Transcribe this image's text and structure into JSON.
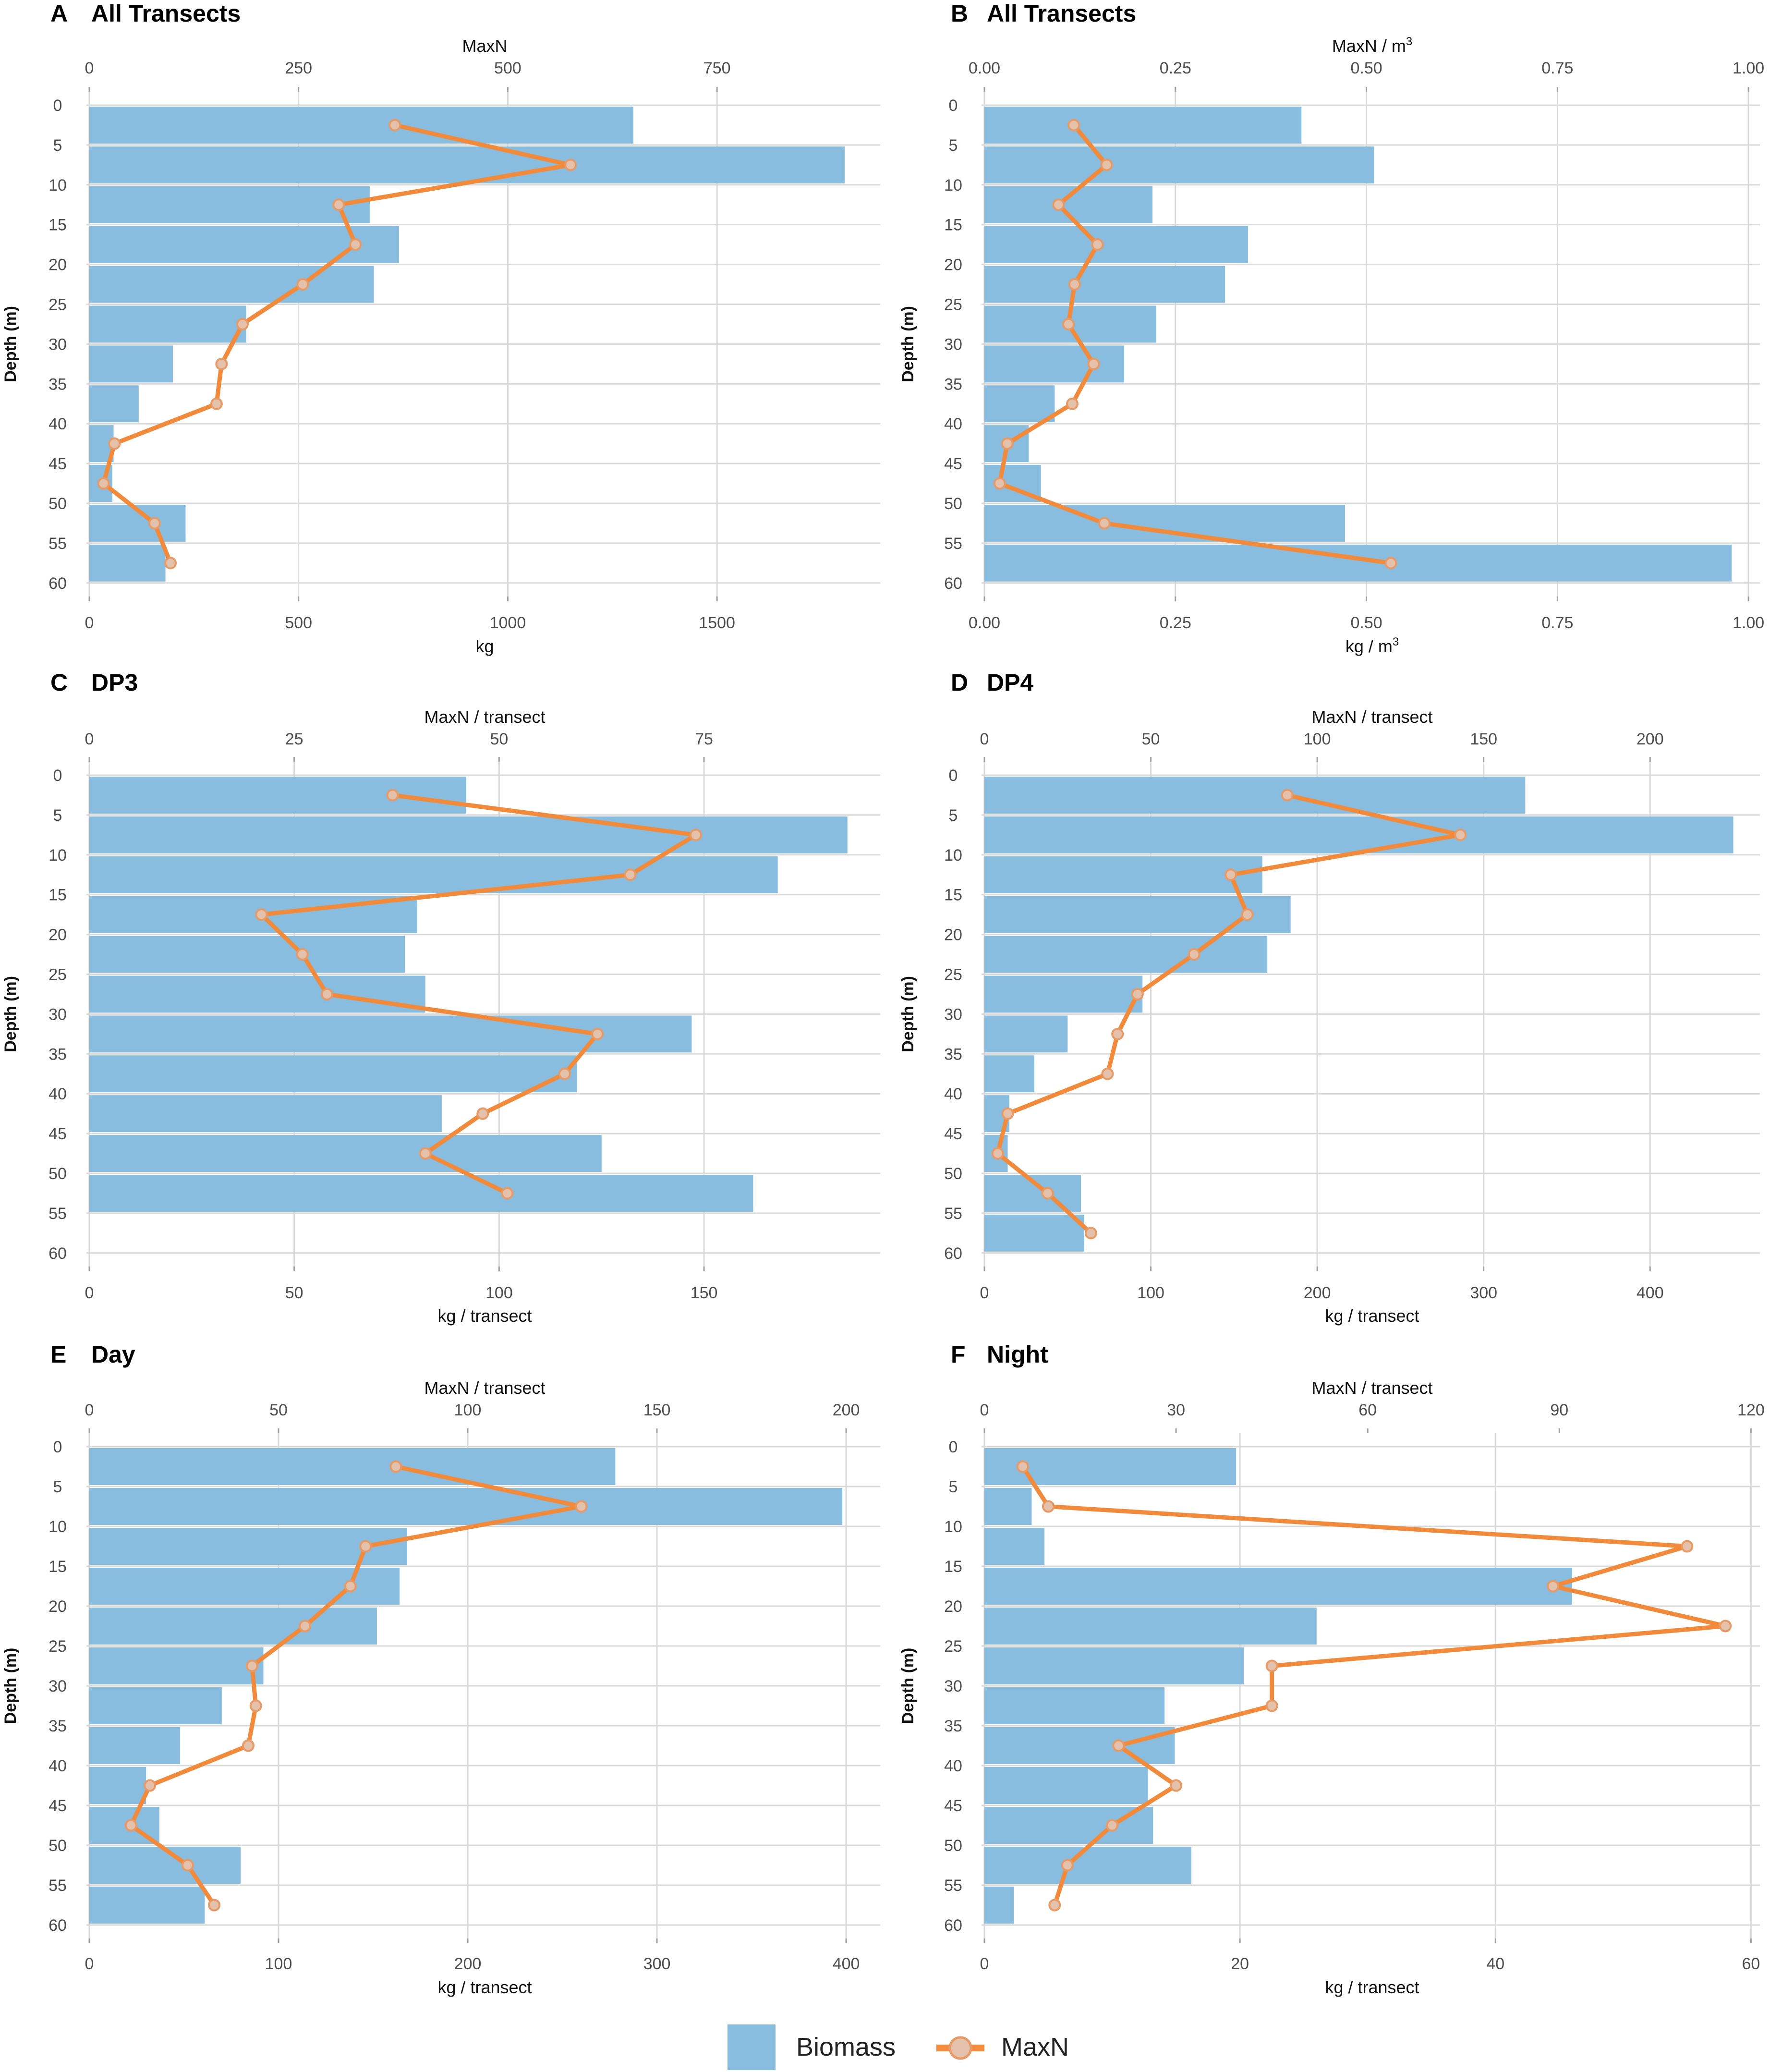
{
  "colors": {
    "biomass": "#88bde0",
    "maxn": "#f28a3c",
    "marker_fill": "#e3c1aa",
    "marker_stroke": "#e89a66"
  },
  "legend": {
    "biomass_label": "Biomass",
    "maxn_label": "MaxN"
  },
  "chart_data": [
    {
      "type": "bar",
      "letter": "A",
      "title": "All Transects",
      "xlabel_bottom": "kg",
      "xlabel_top": "MaxN",
      "xlabel_top_sup": "",
      "xlabel_bottom_sup": "",
      "ylabel": "Depth (m)",
      "bottom_range": [
        0,
        1890
      ],
      "bottom_ticks": [
        0,
        500,
        1000,
        1500
      ],
      "bottom_tick_labels": [
        "0",
        "500",
        "1000",
        "1500"
      ],
      "top_range": [
        0,
        945
      ],
      "top_ticks": [
        0,
        250,
        500,
        750
      ],
      "top_tick_labels": [
        "0",
        "250",
        "500",
        "750"
      ],
      "depth_ticks": [
        0,
        5,
        10,
        15,
        20,
        25,
        30,
        35,
        40,
        45,
        50,
        55,
        60
      ],
      "depth_tick_labels": [
        "0",
        "5",
        "10",
        "15",
        "20",
        "25",
        "30",
        "35",
        "40",
        "45",
        "50",
        "55",
        "60"
      ],
      "biomass": [
        1300,
        1805,
        670,
        740,
        680,
        375,
        200,
        118,
        58,
        55,
        230,
        182
      ],
      "maxn": [
        365,
        575,
        298,
        318,
        255,
        183,
        158,
        152,
        30,
        17,
        78,
        97
      ]
    },
    {
      "type": "bar",
      "letter": "B",
      "title": "All Transects",
      "xlabel_bottom": "kg / m",
      "xlabel_top": "MaxN / m",
      "xlabel_top_sup": "3",
      "xlabel_bottom_sup": "3",
      "ylabel": "Depth (m)",
      "bottom_range": [
        0,
        1.015
      ],
      "bottom_ticks": [
        0,
        0.25,
        0.5,
        0.75,
        1.0
      ],
      "bottom_tick_labels": [
        "0.00",
        "0.25",
        "0.50",
        "0.75",
        "1.00"
      ],
      "top_range": [
        0,
        1.015
      ],
      "top_ticks": [
        0,
        0.25,
        0.5,
        0.75,
        1.0
      ],
      "top_tick_labels": [
        "0.00",
        "0.25",
        "0.50",
        "0.75",
        "1.00"
      ],
      "depth_ticks": [
        0,
        5,
        10,
        15,
        20,
        25,
        30,
        35,
        40,
        45,
        50,
        55,
        60
      ],
      "depth_tick_labels": [
        "0",
        "5",
        "10",
        "15",
        "20",
        "25",
        "30",
        "35",
        "40",
        "45",
        "50",
        "55",
        "60"
      ],
      "biomass": [
        0.415,
        0.51,
        0.22,
        0.345,
        0.315,
        0.225,
        0.183,
        0.092,
        0.058,
        0.074,
        0.472,
        0.978
      ],
      "maxn": [
        0.117,
        0.16,
        0.097,
        0.148,
        0.118,
        0.11,
        0.143,
        0.115,
        0.03,
        0.02,
        0.157,
        0.532
      ]
    },
    {
      "type": "bar",
      "letter": "C",
      "title": "DP3",
      "xlabel_bottom": "kg / transect",
      "xlabel_top": "MaxN / transect",
      "xlabel_top_sup": "",
      "xlabel_bottom_sup": "",
      "ylabel": "Depth (m)",
      "bottom_range": [
        0,
        193
      ],
      "bottom_ticks": [
        0,
        50,
        100,
        150
      ],
      "bottom_tick_labels": [
        "0",
        "50",
        "100",
        "150"
      ],
      "top_range": [
        0,
        96.5
      ],
      "top_ticks": [
        0,
        25,
        50,
        75
      ],
      "top_tick_labels": [
        "0",
        "25",
        "50",
        "75"
      ],
      "depth_ticks": [
        0,
        5,
        10,
        15,
        20,
        25,
        30,
        35,
        40,
        45,
        50,
        55,
        60
      ],
      "depth_tick_labels": [
        "0",
        "5",
        "10",
        "15",
        "20",
        "25",
        "30",
        "35",
        "40",
        "45",
        "50",
        "55",
        "60"
      ],
      "biomass": [
        92,
        185,
        168,
        80,
        77,
        82,
        147,
        119,
        86,
        125,
        162
      ],
      "maxn": [
        37,
        74,
        66,
        21,
        26,
        29,
        62,
        58,
        48,
        41,
        51
      ]
    },
    {
      "type": "bar",
      "letter": "D",
      "title": "DP4",
      "xlabel_bottom": "kg / transect",
      "xlabel_top": "MaxN / transect",
      "xlabel_top_sup": "",
      "xlabel_bottom_sup": "",
      "ylabel": "Depth (m)",
      "bottom_range": [
        0,
        466
      ],
      "bottom_ticks": [
        0,
        100,
        200,
        300,
        400
      ],
      "bottom_tick_labels": [
        "0",
        "100",
        "200",
        "300",
        "400"
      ],
      "top_range": [
        0,
        233
      ],
      "top_ticks": [
        0,
        50,
        100,
        150,
        200
      ],
      "top_tick_labels": [
        "0",
        "50",
        "100",
        "150",
        "200"
      ],
      "depth_ticks": [
        0,
        5,
        10,
        15,
        20,
        25,
        30,
        35,
        40,
        45,
        50,
        55,
        60
      ],
      "depth_tick_labels": [
        "0",
        "5",
        "10",
        "15",
        "20",
        "25",
        "30",
        "35",
        "40",
        "45",
        "50",
        "55",
        "60"
      ],
      "biomass": [
        325,
        450,
        167,
        184,
        170,
        95,
        50,
        30,
        15,
        14,
        58,
        60
      ],
      "maxn": [
        91,
        143,
        74,
        79,
        63,
        46,
        40,
        37,
        7,
        4,
        19,
        32
      ]
    },
    {
      "type": "bar",
      "letter": "E",
      "title": "Day",
      "xlabel_bottom": "kg / transect",
      "xlabel_top": "MaxN / transect",
      "xlabel_top_sup": "",
      "xlabel_bottom_sup": "",
      "ylabel": "Depth (m)",
      "bottom_range": [
        0,
        418
      ],
      "bottom_ticks": [
        0,
        100,
        200,
        300,
        400
      ],
      "bottom_tick_labels": [
        "0",
        "100",
        "200",
        "300",
        "400"
      ],
      "top_range": [
        0,
        209
      ],
      "top_ticks": [
        0,
        50,
        100,
        150,
        200
      ],
      "top_tick_labels": [
        "0",
        "50",
        "100",
        "150",
        "200"
      ],
      "depth_ticks": [
        0,
        5,
        10,
        15,
        20,
        25,
        30,
        35,
        40,
        45,
        50,
        55,
        60
      ],
      "depth_tick_labels": [
        "0",
        "5",
        "10",
        "15",
        "20",
        "25",
        "30",
        "35",
        "40",
        "45",
        "50",
        "55",
        "60"
      ],
      "biomass": [
        278,
        398,
        168,
        164,
        152,
        92,
        70,
        48,
        30,
        37,
        80,
        61
      ],
      "maxn": [
        81,
        130,
        73,
        69,
        57,
        43,
        44,
        42,
        16,
        11,
        26,
        33
      ]
    },
    {
      "type": "bar",
      "letter": "F",
      "title": "Night",
      "xlabel_bottom": "kg / transect",
      "xlabel_top": "MaxN / transect",
      "xlabel_top_sup": "",
      "xlabel_bottom_sup": "",
      "ylabel": "Depth (m)",
      "bottom_range": [
        0,
        60.7
      ],
      "bottom_ticks": [
        0,
        20,
        40,
        60
      ],
      "bottom_tick_labels": [
        "0",
        "20",
        "40",
        "60"
      ],
      "top_range": [
        0,
        121.4
      ],
      "top_ticks": [
        0,
        30,
        60,
        90,
        120
      ],
      "top_tick_labels": [
        "0",
        "30",
        "60",
        "90",
        "120"
      ],
      "depth_ticks": [
        0,
        5,
        10,
        15,
        20,
        25,
        30,
        35,
        40,
        45,
        50,
        55,
        60
      ],
      "depth_tick_labels": [
        "0",
        "5",
        "10",
        "15",
        "20",
        "25",
        "30",
        "35",
        "40",
        "45",
        "50",
        "55",
        "60"
      ],
      "biomass": [
        19.7,
        3.7,
        4.7,
        46,
        26,
        20.3,
        14.1,
        14.9,
        12.8,
        13.2,
        16.2,
        2.3
      ],
      "maxn": [
        6,
        10,
        110,
        89,
        116,
        45,
        45,
        21,
        30,
        20,
        13,
        11
      ]
    }
  ]
}
